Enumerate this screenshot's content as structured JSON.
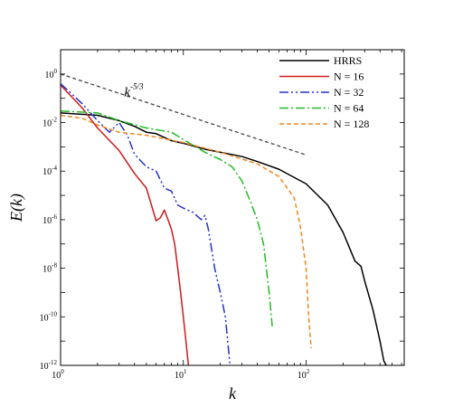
{
  "chart_data": {
    "type": "line",
    "title": "",
    "xlabel": "k",
    "ylabel": "E(k)",
    "xscale": "log",
    "yscale": "log",
    "xlim": [
      1,
      630
    ],
    "ylim": [
      1e-12,
      10
    ],
    "grid": false,
    "legend_position": "top-right",
    "x_ticks": [
      {
        "value": 1,
        "base": "10",
        "exp": "0"
      },
      {
        "value": 10,
        "base": "10",
        "exp": "1"
      },
      {
        "value": 100,
        "base": "10",
        "exp": "2"
      }
    ],
    "y_ticks": [
      {
        "value": 1,
        "base": "10",
        "exp": "0"
      },
      {
        "value": 0.01,
        "base": "10",
        "exp": "-2"
      },
      {
        "value": 0.0001,
        "base": "10",
        "exp": "-4"
      },
      {
        "value": 1e-06,
        "base": "10",
        "exp": "-6"
      },
      {
        "value": 1e-08,
        "base": "10",
        "exp": "-8"
      },
      {
        "value": 1e-10,
        "base": "10",
        "exp": "-10"
      },
      {
        "value": 1e-12,
        "base": "10",
        "exp": "-12"
      }
    ],
    "annotation": {
      "base": "k",
      "exp": "-5/3",
      "x": 3.3,
      "y": 0.12
    },
    "series": [
      {
        "name": "HRRS",
        "color": "#000000",
        "dash": "solid",
        "width": 1.5,
        "x": [
          1,
          2,
          3,
          4,
          5,
          6,
          8,
          10,
          15,
          20,
          30,
          40,
          60,
          100,
          150,
          200,
          250,
          280,
          300,
          350,
          400,
          430,
          450
        ],
        "y": [
          0.025,
          0.02,
          0.012,
          0.007,
          0.004,
          0.0035,
          0.0018,
          0.0014,
          0.0008,
          0.0006,
          0.0004,
          0.00025,
          0.00012,
          3e-05,
          4e-06,
          3e-07,
          2e-08,
          1.2e-08,
          3e-09,
          2e-10,
          1e-11,
          1.5e-12,
          1e-12
        ]
      },
      {
        "name": "N = 16",
        "color": "#cc1a1a",
        "dash": "solid",
        "width": 1.5,
        "x": [
          1,
          1.5,
          2,
          3,
          4,
          5,
          6,
          6.5,
          7,
          7.5,
          8,
          8.5,
          9,
          9.5,
          10,
          10.5,
          11
        ],
        "y": [
          0.35,
          0.04,
          0.006,
          0.0007,
          8e-05,
          2e-05,
          9e-07,
          1.2e-06,
          2.5e-06,
          1e-06,
          4e-07,
          1e-07,
          1e-08,
          1e-09,
          1e-10,
          1e-11,
          1e-12
        ]
      },
      {
        "name": "N = 32",
        "color": "#2233cc",
        "dash": "10,3,2,3,2,3",
        "width": 1.5,
        "x": [
          1,
          1.5,
          2,
          2.5,
          3,
          3.5,
          4,
          5,
          6,
          7,
          8,
          9,
          10,
          12,
          14,
          15,
          16,
          18,
          20,
          22,
          24
        ],
        "y": [
          0.4,
          0.06,
          0.012,
          0.004,
          0.01,
          0.003,
          0.0005,
          0.00015,
          0.0001,
          2e-05,
          1.5e-05,
          4e-06,
          3e-06,
          2e-06,
          1e-06,
          1.5e-06,
          4e-07,
          1e-08,
          1e-09,
          1e-10,
          1e-12
        ]
      },
      {
        "name": "N = 64",
        "color": "#22bb22",
        "dash": "10,3,2,3",
        "width": 1.5,
        "x": [
          1,
          2,
          3,
          5,
          8,
          10,
          15,
          20,
          25,
          30,
          35,
          40,
          45,
          50,
          53
        ],
        "y": [
          0.03,
          0.025,
          0.012,
          0.006,
          0.004,
          0.002,
          0.0006,
          0.0003,
          0.00015,
          4e-05,
          6e-06,
          1e-06,
          1e-07,
          1e-09,
          4e-11
        ]
      },
      {
        "name": "N = 128",
        "color": "#ee8822",
        "dash": "5,3",
        "width": 1.5,
        "x": [
          1,
          1.5,
          2,
          3,
          5,
          10,
          20,
          40,
          60,
          80,
          90,
          100,
          105,
          110
        ],
        "y": [
          0.02,
          0.015,
          0.008,
          0.004,
          0.003,
          0.0015,
          0.0006,
          0.0002,
          6e-05,
          8e-06,
          5e-07,
          1e-08,
          1e-10,
          5e-12
        ]
      },
      {
        "name": "",
        "color": "#444444",
        "dash": "4,3",
        "width": 1.3,
        "in_legend": false,
        "x": [
          1,
          100
        ],
        "y": [
          1,
          0.000464
        ]
      }
    ]
  }
}
